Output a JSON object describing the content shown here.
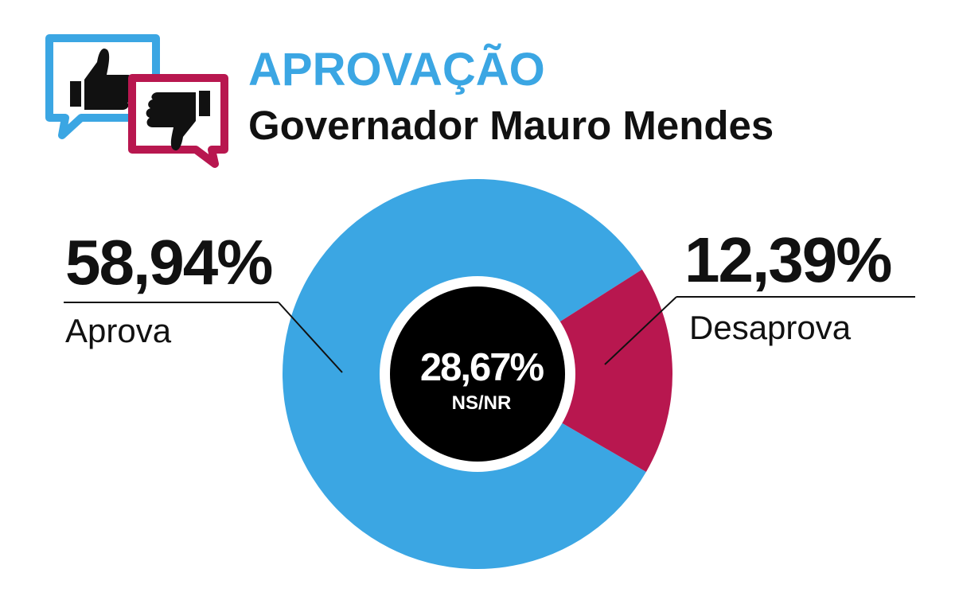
{
  "header": {
    "title": "APROVAÇÃO",
    "subtitle": "Governador Mauro Mendes"
  },
  "colors": {
    "approve": "#3ba6e3",
    "disapprove": "#b8174f",
    "center": "#000000",
    "title": "#3ba6e3",
    "text": "#111111"
  },
  "icons": {
    "approve": "thumbs-up-speech-bubble-icon",
    "disapprove": "thumbs-down-speech-bubble-icon"
  },
  "chart_data": {
    "type": "pie",
    "title": "APROVAÇÃO",
    "subtitle": "Governador Mauro Mendes",
    "slices": [
      {
        "label": "Aprova",
        "value": 58.94,
        "display": "58,94%",
        "color": "#3ba6e3"
      },
      {
        "label": "Desaprova",
        "value": 12.39,
        "display": "12,39%",
        "color": "#b8174f"
      },
      {
        "label": "NS/NR",
        "value": 28.67,
        "display": "28,67%",
        "color": "#000000"
      }
    ]
  }
}
